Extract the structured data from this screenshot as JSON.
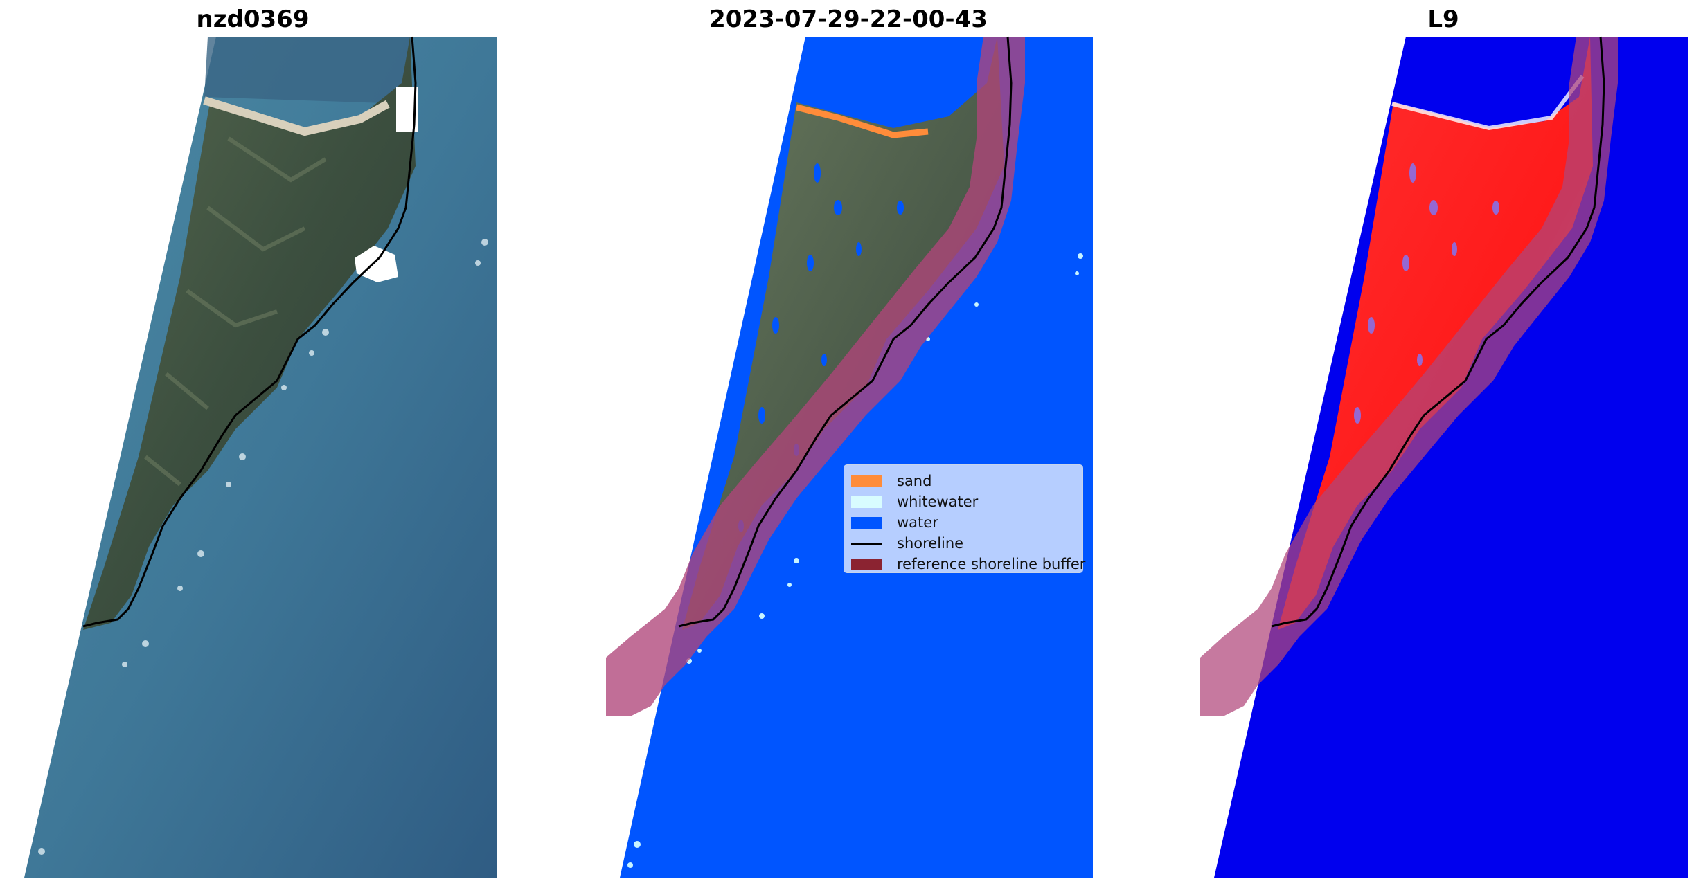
{
  "panels": [
    {
      "title": "nzd0369"
    },
    {
      "title": "2023-07-29-22-00-43"
    },
    {
      "title": "L9"
    }
  ],
  "legend": [
    {
      "label": "sand",
      "color": "#ff8c3a",
      "type": "patch"
    },
    {
      "label": "whitewater",
      "color": "#d8fcff",
      "type": "patch"
    },
    {
      "label": "water",
      "color": "#0055ff",
      "type": "patch"
    },
    {
      "label": "shoreline",
      "color": "#000000",
      "type": "line"
    },
    {
      "label": "reference shoreline buffer",
      "color": "#8b2331",
      "type": "patch"
    }
  ],
  "colors": {
    "water_class": "#0055ff",
    "ocean_rgb": "#3b6f93",
    "land_rgb": "#3d5242",
    "buffer": "#b0457a",
    "index_water": "#0000ee",
    "index_land": "#ff2020"
  }
}
